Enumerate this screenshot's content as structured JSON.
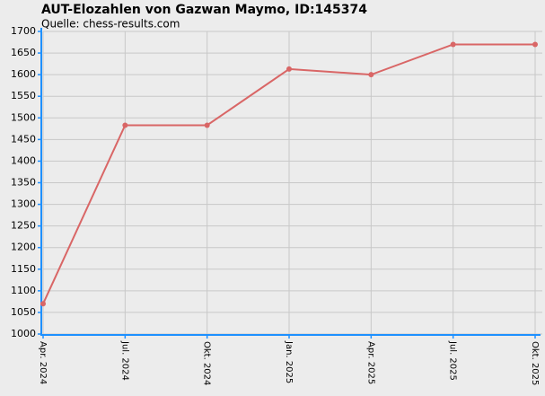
{
  "chart_data": {
    "type": "line",
    "title": "AUT-Elozahlen von Gazwan Maymo, ID:145374",
    "subtitle": "Quelle: chess-results.com",
    "categories": [
      "Apr. 2024",
      "Jul. 2024",
      "Okt. 2024",
      "Jan. 2025",
      "Apr. 2025",
      "Jul. 2025",
      "Okt. 2025"
    ],
    "series": [
      {
        "name": "Elo",
        "color": "#d96666",
        "values": [
          1070,
          1483,
          1483,
          1613,
          1600,
          1670,
          1670
        ]
      }
    ],
    "ylim": [
      1000,
      1700
    ],
    "yticks": [
      1000,
      1050,
      1100,
      1150,
      1200,
      1250,
      1300,
      1350,
      1400,
      1450,
      1500,
      1550,
      1600,
      1650,
      1700
    ],
    "grid": true
  }
}
